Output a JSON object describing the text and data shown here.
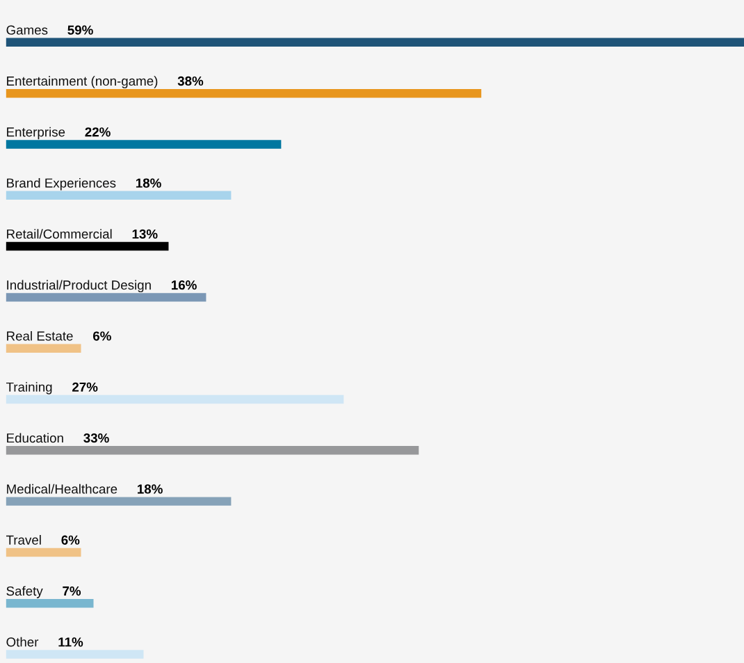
{
  "chart_data": {
    "type": "bar",
    "orientation": "horizontal",
    "categories": [
      "Games",
      "Entertainment (non-game)",
      "Enterprise",
      "Brand Experiences",
      "Retail/Commercial",
      "Industrial/Product Design",
      "Real Estate",
      "Training",
      "Education",
      "Medical/Healthcare",
      "Travel",
      "Safety",
      "Other"
    ],
    "values": [
      59,
      38,
      22,
      18,
      13,
      16,
      6,
      27,
      33,
      18,
      6,
      7,
      11
    ],
    "value_labels": [
      "59%",
      "38%",
      "22%",
      "18%",
      "13%",
      "16%",
      "6%",
      "27%",
      "33%",
      "18%",
      "6%",
      "7%",
      "11%"
    ],
    "colors": [
      "#1f5478",
      "#e8961e",
      "#0077a0",
      "#a8d4ec",
      "#000000",
      "#7b97b5",
      "#f0c286",
      "#cfe6f5",
      "#97989a",
      "#86a2b8",
      "#f0c286",
      "#79b6cf",
      "#cfe6f5"
    ],
    "legend": false
  }
}
